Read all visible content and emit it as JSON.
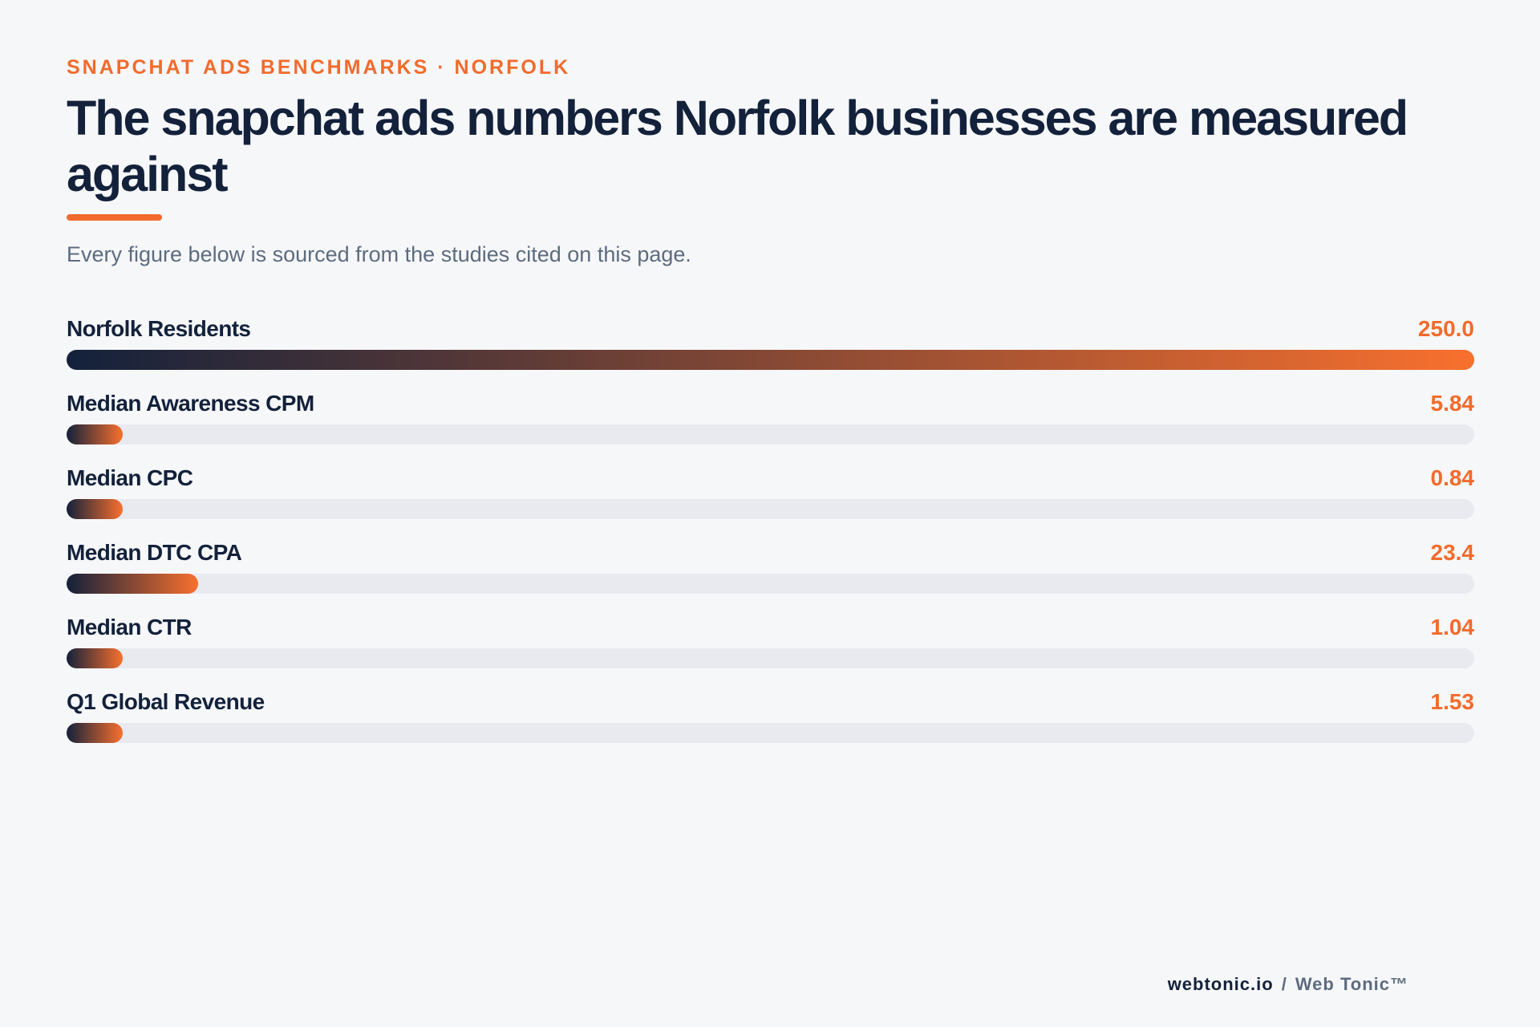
{
  "eyebrow": "SNAPCHAT ADS BENCHMARKS · NORFOLK",
  "title": "The snapchat ads numbers Norfolk businesses are measured against",
  "subtitle": "Every figure below is sourced from the studies cited on this page.",
  "colors": {
    "accent": "#f26b2c",
    "navy": "#13213b",
    "track": "#e8eaf0",
    "background": "#f6f7f9"
  },
  "chart_data": {
    "type": "bar",
    "orientation": "horizontal",
    "title": "The snapchat ads numbers Norfolk businesses are measured against",
    "categories": [
      "Norfolk Residents",
      "Median Awareness CPM",
      "Median CPC",
      "Median DTC CPA",
      "Median CTR",
      "Q1 Global Revenue"
    ],
    "values": [
      250.0,
      5.84,
      0.84,
      23.4,
      1.04,
      1.53
    ],
    "value_labels": [
      "250.0",
      "5.84",
      "0.84",
      "23.4",
      "1.04",
      "1.53"
    ],
    "xlim": [
      0,
      250
    ],
    "min_bar_fraction": 0.04,
    "grid": false,
    "legend": "none"
  },
  "footer": {
    "site": "webtonic.io",
    "separator": "/",
    "brand": "Web Tonic™"
  }
}
